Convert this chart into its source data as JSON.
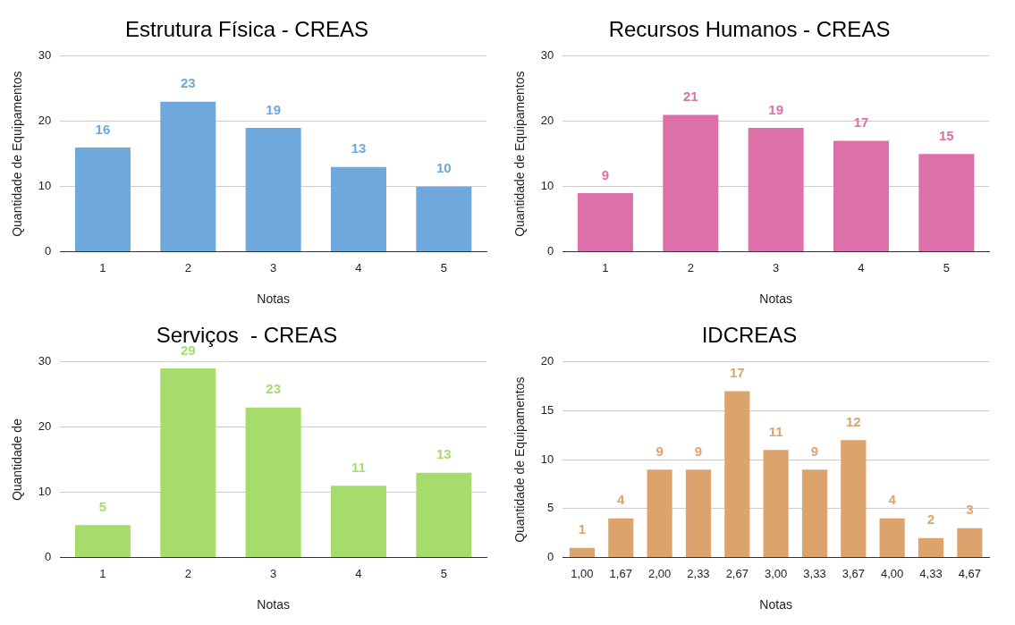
{
  "chart_data": [
    {
      "type": "bar",
      "title": "Estrutura Física - CREAS",
      "xlabel": "Notas",
      "ylabel": "Quantidade de Equipamentos",
      "categories": [
        "1",
        "2",
        "3",
        "4",
        "5"
      ],
      "values": [
        16,
        23,
        19,
        13,
        10
      ],
      "color": "#6fa8dc",
      "ylim": [
        0,
        30
      ],
      "yticks": [
        0,
        10,
        20,
        30
      ],
      "grid": "y",
      "data_labels": true
    },
    {
      "type": "bar",
      "title": "Recursos Humanos - CREAS",
      "xlabel": "Notas",
      "ylabel": "Quantidade de Equipamentos",
      "categories": [
        "1",
        "2",
        "3",
        "4",
        "5"
      ],
      "values": [
        9,
        21,
        19,
        17,
        15
      ],
      "color": "#dd6fa9",
      "ylim": [
        0,
        30
      ],
      "yticks": [
        0,
        10,
        20,
        30
      ],
      "grid": "y",
      "data_labels": true
    },
    {
      "type": "bar",
      "title": "Serviços  - CREAS",
      "xlabel": "Notas",
      "ylabel": "Quantidade de",
      "categories": [
        "1",
        "2",
        "3",
        "4",
        "5"
      ],
      "values": [
        5,
        29,
        23,
        11,
        13
      ],
      "color": "#a6dc6c",
      "ylim": [
        0,
        30
      ],
      "yticks": [
        0,
        10,
        20,
        30
      ],
      "grid": "y",
      "data_labels": true
    },
    {
      "type": "bar",
      "title": "IDCREAS",
      "xlabel": "Notas",
      "ylabel": "Quantidade de Equipamentos",
      "categories": [
        "1,00",
        "1,67",
        "2,00",
        "2,33",
        "2,67",
        "3,00",
        "3,33",
        "3,67",
        "4,00",
        "4,33",
        "4,67"
      ],
      "values": [
        1,
        4,
        9,
        9,
        17,
        11,
        9,
        12,
        4,
        2,
        3
      ],
      "color": "#dda36c",
      "ylim": [
        0,
        20
      ],
      "yticks": [
        0,
        5,
        10,
        15,
        20
      ],
      "grid": "y",
      "data_labels": true
    }
  ]
}
